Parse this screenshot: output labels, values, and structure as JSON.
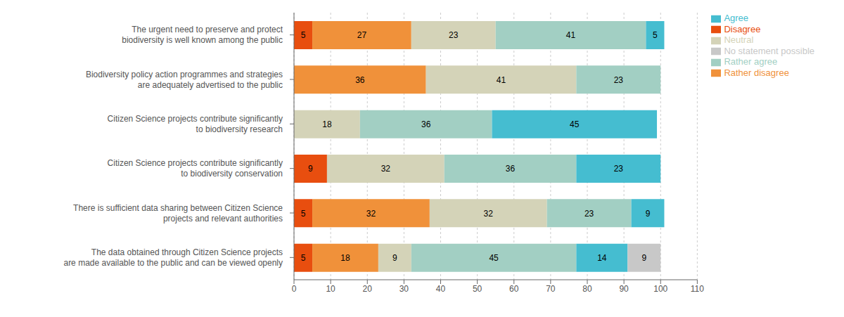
{
  "chart_data": {
    "type": "bar",
    "orientation": "horizontal",
    "stacked": true,
    "data_labels": true,
    "grid": true,
    "legend": "right",
    "categories": [
      "The urgent need to preserve and protect\nbiodiversity is well known among the public",
      "Biodiversity policy action programmes and strategies\nare adequately advertised to the public",
      "Citizen Science projects contribute significantly\nto biodiversity research",
      "Citizen Science projects contribute significantly\nto biodiversity conservation",
      "There is sufficient data sharing between Citizen Science\nprojects and relevant authorities",
      "The data obtained through Citizen Science projects\nare made available to the public and can be viewed openly"
    ],
    "series": [
      {
        "name": "Disagree",
        "color": "#E84E0F",
        "values": [
          5,
          0,
          0,
          9,
          5,
          5
        ]
      },
      {
        "name": "Rather disagree",
        "color": "#F0913A",
        "values": [
          27,
          36,
          0,
          0,
          32,
          18
        ]
      },
      {
        "name": "Neutral",
        "color": "#D4D3B8",
        "values": [
          23,
          41,
          18,
          32,
          32,
          9
        ]
      },
      {
        "name": "Rather agree",
        "color": "#A2CFC3",
        "values": [
          41,
          23,
          36,
          36,
          23,
          45
        ]
      },
      {
        "name": "Agree",
        "color": "#45BDD0",
        "values": [
          5,
          0,
          45,
          23,
          9,
          14
        ]
      },
      {
        "name": "No statement possible",
        "color": "#C8C8C8",
        "values": [
          0,
          0,
          0,
          0,
          0,
          9
        ]
      }
    ],
    "xlim": [
      0,
      110
    ],
    "xticks": [
      0,
      10,
      20,
      30,
      40,
      50,
      60,
      70,
      80,
      90,
      100,
      110
    ]
  }
}
